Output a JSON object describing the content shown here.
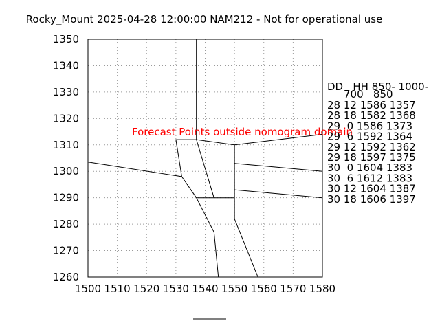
{
  "chart_data": {
    "type": "nomogram",
    "title": "Rocky_Mount 2025-04-28 12:00:00 NAM212 - Not for operational use",
    "xlabel": "",
    "ylabel": "",
    "xlim": [
      1500,
      1580
    ],
    "ylim": [
      1260,
      1350
    ],
    "x_ticks": [
      1500,
      1510,
      1520,
      1530,
      1540,
      1550,
      1560,
      1570,
      1580
    ],
    "y_ticks": [
      1260,
      1270,
      1280,
      1290,
      1300,
      1310,
      1320,
      1330,
      1340,
      1350
    ],
    "grid": true,
    "warning": "Forecast Points outside nomogram domain",
    "boundary_lines": [
      [
        [
          1500,
          1303.5
        ],
        [
          1532,
          1298
        ],
        [
          1530,
          1312
        ],
        [
          1537,
          1312
        ],
        [
          1537,
          1350
        ]
      ],
      [
        [
          1532,
          1298
        ],
        [
          1537,
          1290
        ],
        [
          1550,
          1290
        ],
        [
          1550,
          1310
        ],
        [
          1537,
          1312
        ]
      ],
      [
        [
          1537,
          1312
        ],
        [
          1543,
          1290
        ]
      ],
      [
        [
          1550,
          1310
        ],
        [
          1580,
          1314
        ]
      ],
      [
        [
          1550,
          1303
        ],
        [
          1580,
          1300
        ]
      ],
      [
        [
          1550,
          1293
        ],
        [
          1580,
          1290
        ]
      ],
      [
        [
          1537,
          1290
        ],
        [
          1543,
          1277
        ],
        [
          1544.5,
          1260
        ]
      ],
      [
        [
          1550,
          1290
        ],
        [
          1550,
          1282
        ],
        [
          1558,
          1260
        ]
      ]
    ],
    "table": {
      "header_line1": "DD   HH 850- 1000-",
      "header_line2": "700   850",
      "rows": [
        "28 12 1586 1357",
        "28 18 1582 1368",
        "29  0 1586 1373",
        "29  6 1592 1364",
        "29 12 1592 1362",
        "29 18 1597 1375",
        "30  0 1604 1383",
        "30  6 1612 1383",
        "30 12 1604 1387",
        "30 18 1606 1397"
      ]
    }
  }
}
